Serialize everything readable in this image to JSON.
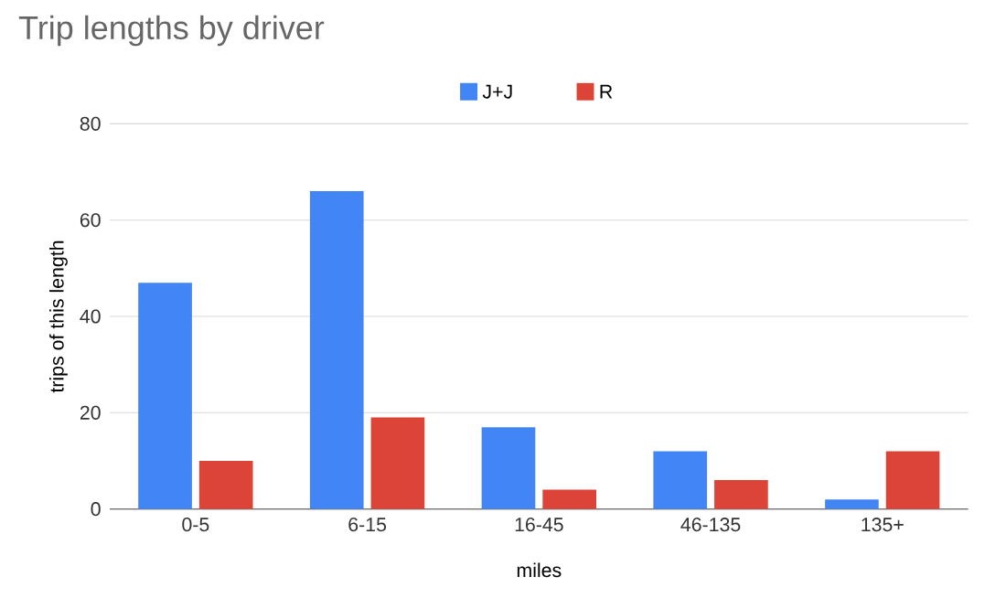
{
  "chart_data": {
    "type": "bar",
    "title": "Trip lengths by driver",
    "xlabel": "miles",
    "ylabel": "trips of this length",
    "categories": [
      "0-5",
      "6-15",
      "16-45",
      "46-135",
      "135+"
    ],
    "series": [
      {
        "name": "J+J",
        "color": "#4285f4",
        "values": [
          47,
          66,
          17,
          12,
          2
        ]
      },
      {
        "name": "R",
        "color": "#db4437",
        "values": [
          10,
          19,
          4,
          6,
          12
        ]
      }
    ],
    "ylim": [
      0,
      80
    ],
    "yticks": [
      0,
      20,
      40,
      60,
      80
    ],
    "grid": "y",
    "legend": "top"
  }
}
